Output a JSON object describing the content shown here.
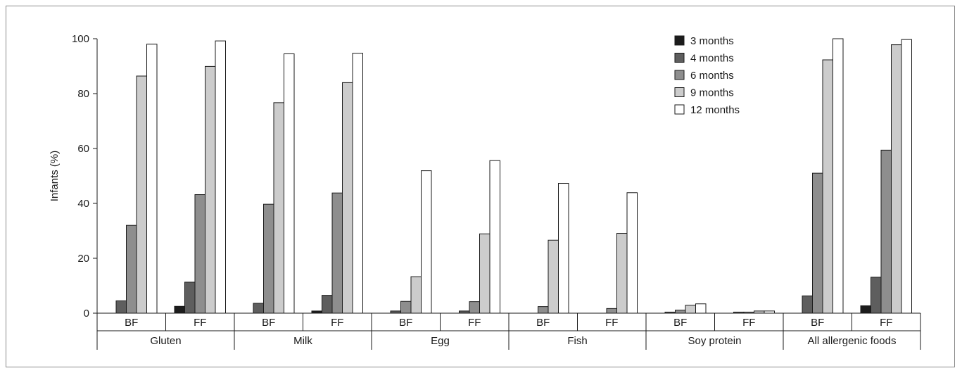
{
  "chart_data": {
    "type": "bar",
    "title": "",
    "ylabel": "Infants (%)",
    "xlabel": "",
    "ylim": [
      0,
      100
    ],
    "yticks": [
      0,
      20,
      40,
      60,
      80,
      100
    ],
    "grid": false,
    "legend_position": "top-right",
    "groups": [
      "Gluten",
      "Milk",
      "Egg",
      "Fish",
      "Soy protein",
      "All allergenic foods"
    ],
    "subgroups": [
      "BF",
      "FF"
    ],
    "categories": [
      "Gluten BF",
      "Gluten FF",
      "Milk BF",
      "Milk FF",
      "Egg BF",
      "Egg FF",
      "Fish BF",
      "Fish FF",
      "Soy protein BF",
      "Soy protein FF",
      "All allergenic foods BF",
      "All allergenic foods FF"
    ],
    "series": [
      {
        "name": "3 months",
        "color": "#1c1c1c",
        "values": [
          0,
          2.5,
          0,
          0.8,
          0,
          0,
          0,
          0,
          0,
          0,
          0,
          2.7
        ]
      },
      {
        "name": "4 months",
        "color": "#5e5e5e",
        "values": [
          4.5,
          11.3,
          3.6,
          6.5,
          0.8,
          0.8,
          0,
          0,
          0.4,
          0.4,
          6.3,
          13.1
        ]
      },
      {
        "name": "6 months",
        "color": "#8e8e8e",
        "values": [
          32.0,
          43.2,
          39.7,
          43.8,
          4.3,
          4.2,
          2.4,
          1.7,
          1.1,
          0.4,
          51.0,
          59.4
        ]
      },
      {
        "name": "9 months",
        "color": "#cccccc",
        "values": [
          86.4,
          89.9,
          76.7,
          84.0,
          13.3,
          28.9,
          26.6,
          29.1,
          2.9,
          0.8,
          92.3,
          97.8
        ]
      },
      {
        "name": "12 months",
        "color": "#ffffff",
        "values": [
          98.0,
          99.2,
          94.5,
          94.7,
          51.9,
          55.6,
          47.3,
          43.9,
          3.4,
          0.8,
          100.0,
          99.7
        ]
      }
    ]
  }
}
